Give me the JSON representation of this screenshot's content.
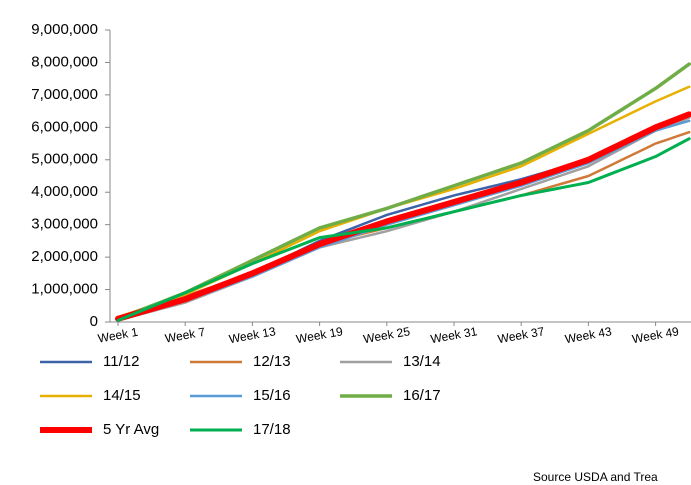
{
  "chart_data": {
    "type": "line",
    "categories": [
      "Week 1",
      null,
      null,
      null,
      null,
      null,
      "Week 7",
      null,
      null,
      null,
      null,
      null,
      "Week 13",
      null,
      null,
      null,
      null,
      null,
      "Week 19",
      null,
      null,
      null,
      null,
      null,
      "Week 25",
      null,
      null,
      null,
      null,
      null,
      "Week 31",
      null,
      null,
      null,
      null,
      null,
      "Week 37",
      null,
      null,
      null,
      null,
      null,
      "Week 43",
      null,
      null,
      null,
      null,
      null,
      "Week 49",
      null,
      null,
      null
    ],
    "ylim": [
      0,
      9000000
    ],
    "yticks": [
      0,
      {
        "value": 1000000,
        "label": "1,000,000"
      },
      {
        "value": 2000000,
        "label": "2,000,000"
      },
      {
        "value": 3000000,
        "label": "3,000,000"
      },
      {
        "value": 4000000,
        "label": "4,000,000"
      },
      {
        "value": 5000000,
        "label": "5,000,000"
      },
      {
        "value": 6000000,
        "label": "6,000,000"
      },
      {
        "value": 7000000,
        "label": "7,000,000"
      },
      {
        "value": 8000000,
        "label": "8,000,000"
      },
      {
        "value": 9000000,
        "label": "9,000,000"
      }
    ],
    "grid": false,
    "source": "Source USDA and Trea",
    "series": [
      {
        "name": "11/12",
        "color": "#3c63a8",
        "width": 2.5,
        "values": [
          50000,
          158000,
          267000,
          375000,
          483000,
          592000,
          700000,
          833000,
          967000,
          1100000,
          1233000,
          1367000,
          1500000,
          1667000,
          1833000,
          2000000,
          2167000,
          2333000,
          2500000,
          2633000,
          2767000,
          2900000,
          3033000,
          3167000,
          3300000,
          3400000,
          3500000,
          3600000,
          3700000,
          3800000,
          3900000,
          3983000,
          4067000,
          4150000,
          4233000,
          4317000,
          4400000,
          4500000,
          4600000,
          4700000,
          4800000,
          4900000,
          5000000,
          5150000,
          5300000,
          5450000,
          5600000,
          5750000,
          5900000,
          6033000,
          6167000,
          6300000
        ]
      },
      {
        "name": "12/13",
        "color": "#d07a3a",
        "width": 2.5,
        "values": [
          100000,
          217000,
          333000,
          450000,
          567000,
          683000,
          800000,
          917000,
          1033000,
          1150000,
          1267000,
          1383000,
          1500000,
          1650000,
          1800000,
          1950000,
          2100000,
          2250000,
          2400000,
          2483000,
          2567000,
          2650000,
          2733000,
          2817000,
          2900000,
          2983000,
          3067000,
          3150000,
          3233000,
          3317000,
          3400000,
          3483000,
          3567000,
          3650000,
          3733000,
          3817000,
          3900000,
          4000000,
          4100000,
          4200000,
          4300000,
          4400000,
          4500000,
          4667000,
          4833000,
          5000000,
          5167000,
          5333000,
          5500000,
          5617000,
          5733000,
          5850000
        ]
      },
      {
        "name": "13/14",
        "color": "#a0a0a0",
        "width": 2.5,
        "values": [
          50000,
          142000,
          233000,
          325000,
          417000,
          508000,
          600000,
          733000,
          867000,
          1000000,
          1133000,
          1267000,
          1400000,
          1550000,
          1700000,
          1850000,
          2000000,
          2150000,
          2300000,
          2383000,
          2467000,
          2550000,
          2633000,
          2717000,
          2800000,
          2900000,
          3000000,
          3100000,
          3200000,
          3300000,
          3400000,
          3517000,
          3633000,
          3750000,
          3867000,
          3983000,
          4100000,
          4217000,
          4333000,
          4450000,
          4567000,
          4683000,
          4800000,
          4983000,
          5167000,
          5350000,
          5533000,
          5717000,
          5900000,
          6033000,
          6167000,
          6300000
        ]
      },
      {
        "name": "14/15",
        "color": "#e8b000",
        "width": 2.5,
        "values": [
          150000,
          267000,
          383000,
          500000,
          617000,
          733000,
          850000,
          1008000,
          1167000,
          1325000,
          1483000,
          1642000,
          1800000,
          1967000,
          2133000,
          2300000,
          2467000,
          2633000,
          2800000,
          2917000,
          3033000,
          3150000,
          3267000,
          3383000,
          3500000,
          3600000,
          3700000,
          3800000,
          3900000,
          4000000,
          4100000,
          4217000,
          4333000,
          4450000,
          4567000,
          4683000,
          4800000,
          4967000,
          5133000,
          5300000,
          5467000,
          5633000,
          5800000,
          5967000,
          6133000,
          6300000,
          6467000,
          6633000,
          6800000,
          6950000,
          7100000,
          7250000
        ]
      },
      {
        "name": "15/16",
        "color": "#5b9bd5",
        "width": 2.5,
        "values": [
          50000,
          150000,
          250000,
          350000,
          450000,
          550000,
          650000,
          775000,
          900000,
          1025000,
          1150000,
          1275000,
          1400000,
          1550000,
          1700000,
          1850000,
          2000000,
          2150000,
          2300000,
          2417000,
          2533000,
          2650000,
          2767000,
          2883000,
          3000000,
          3100000,
          3200000,
          3300000,
          3400000,
          3500000,
          3600000,
          3700000,
          3800000,
          3900000,
          4000000,
          4100000,
          4200000,
          4317000,
          4433000,
          4550000,
          4667000,
          4783000,
          4900000,
          5067000,
          5233000,
          5400000,
          5567000,
          5733000,
          5900000,
          6000000,
          6100000,
          6200000
        ]
      },
      {
        "name": "16/17",
        "color": "#70ad47",
        "width": 3.5,
        "values": [
          100000,
          233000,
          367000,
          500000,
          633000,
          767000,
          900000,
          1067000,
          1233000,
          1400000,
          1567000,
          1733000,
          1900000,
          2067000,
          2233000,
          2400000,
          2567000,
          2733000,
          2900000,
          3000000,
          3100000,
          3200000,
          3300000,
          3400000,
          3500000,
          3617000,
          3733000,
          3850000,
          3967000,
          4083000,
          4200000,
          4317000,
          4433000,
          4550000,
          4667000,
          4783000,
          4900000,
          5067000,
          5233000,
          5400000,
          5567000,
          5733000,
          5900000,
          6117000,
          6333000,
          6550000,
          6767000,
          6983000,
          7200000,
          7450000,
          7700000,
          7950000
        ]
      },
      {
        "name": "5 Yr Avg",
        "color": "#ff0000",
        "width": 6,
        "values": [
          100000,
          200000,
          300000,
          400000,
          500000,
          600000,
          700000,
          833000,
          967000,
          1100000,
          1233000,
          1367000,
          1500000,
          1650000,
          1800000,
          1950000,
          2100000,
          2250000,
          2400000,
          2517000,
          2633000,
          2750000,
          2867000,
          2983000,
          3100000,
          3200000,
          3300000,
          3400000,
          3500000,
          3600000,
          3700000,
          3800000,
          3900000,
          4000000,
          4100000,
          4200000,
          4300000,
          4417000,
          4533000,
          4650000,
          4767000,
          4883000,
          5000000,
          5167000,
          5333000,
          5500000,
          5667000,
          5833000,
          6000000,
          6133000,
          6267000,
          6400000
        ]
      },
      {
        "name": "17/18",
        "color": "#00b050",
        "width": 3,
        "values": [
          50000,
          192000,
          333000,
          475000,
          617000,
          758000,
          900000,
          1050000,
          1200000,
          1350000,
          1500000,
          1650000,
          1800000,
          1933000,
          2067000,
          2200000,
          2333000,
          2467000,
          2600000,
          2650000,
          2700000,
          2750000,
          2800000,
          2850000,
          2900000,
          2983000,
          3067000,
          3150000,
          3233000,
          3317000,
          3400000,
          3483000,
          3567000,
          3650000,
          3733000,
          3817000,
          3900000,
          3967000,
          4033000,
          4100000,
          4167000,
          4233000,
          4300000,
          4433000,
          4567000,
          4700000,
          4833000,
          4967000,
          5100000,
          5283000,
          5467000,
          5650000
        ]
      }
    ]
  }
}
